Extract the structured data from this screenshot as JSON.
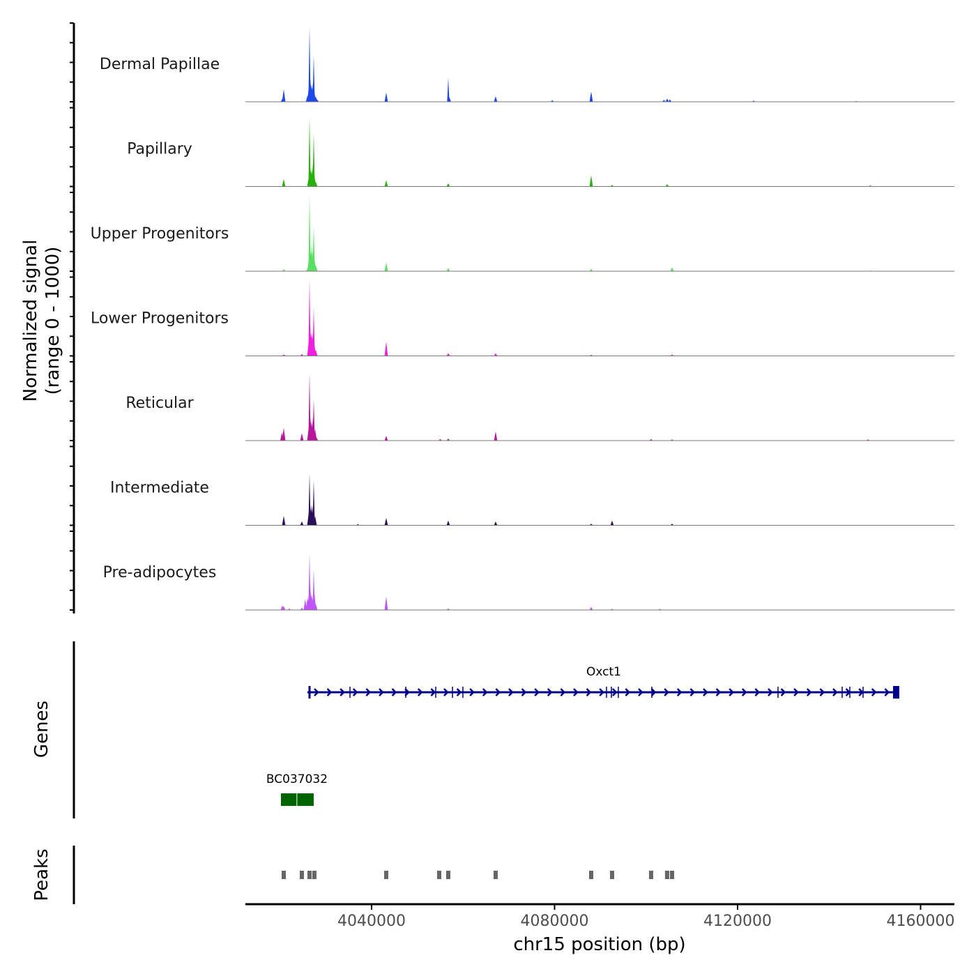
{
  "chart_data": {
    "type": "area",
    "title": "",
    "ylabel": "Normalized signal",
    "ylabel_range": "(range 0 - 1000)",
    "xlabel": "chr15 position (bp)",
    "xlim": [
      4012400,
      4167500
    ],
    "ylim": [
      0,
      1000
    ],
    "x_ticks": [
      4040000,
      4080000,
      4120000,
      4160000
    ],
    "x_tick_labels": [
      "4040000",
      "4080000",
      "4120000",
      "4160000"
    ],
    "grid": false,
    "tracks": [
      {
        "name": "Dermal Papillae",
        "color": "#1c48e6",
        "peaks": [
          [
            4020500,
            40
          ],
          [
            4020800,
            160
          ],
          [
            4026000,
            80
          ],
          [
            4026290,
            190
          ],
          [
            4026440,
            950
          ],
          [
            4026590,
            300
          ],
          [
            4026740,
            230
          ],
          [
            4026900,
            200
          ],
          [
            4027050,
            180
          ],
          [
            4027200,
            240
          ],
          [
            4027350,
            590
          ],
          [
            4027500,
            120
          ],
          [
            4027800,
            70
          ],
          [
            4028100,
            30
          ],
          [
            4043200,
            115
          ],
          [
            4056760,
            310
          ],
          [
            4057000,
            60
          ],
          [
            4067120,
            70
          ],
          [
            4079500,
            20
          ],
          [
            4088000,
            130
          ],
          [
            4103900,
            25
          ],
          [
            4104600,
            40
          ],
          [
            4105200,
            30
          ],
          [
            4123500,
            15
          ],
          [
            4146000,
            10
          ]
        ]
      },
      {
        "name": "Papillary",
        "color": "#29b00a",
        "peaks": [
          [
            4020800,
            95
          ],
          [
            4026290,
            120
          ],
          [
            4026440,
            880
          ],
          [
            4026590,
            250
          ],
          [
            4026740,
            200
          ],
          [
            4026900,
            220
          ],
          [
            4027050,
            160
          ],
          [
            4027200,
            300
          ],
          [
            4027350,
            680
          ],
          [
            4027500,
            140
          ],
          [
            4027800,
            60
          ],
          [
            4043200,
            80
          ],
          [
            4056760,
            40
          ],
          [
            4088000,
            140
          ],
          [
            4092570,
            20
          ],
          [
            4104600,
            30
          ],
          [
            4149000,
            15
          ]
        ]
      },
      {
        "name": "Upper Progenitors",
        "color": "#59e062",
        "peaks": [
          [
            4020800,
            25
          ],
          [
            4026000,
            30
          ],
          [
            4026290,
            150
          ],
          [
            4026440,
            960
          ],
          [
            4026590,
            300
          ],
          [
            4026740,
            250
          ],
          [
            4026900,
            370
          ],
          [
            4027050,
            220
          ],
          [
            4027200,
            280
          ],
          [
            4027350,
            580
          ],
          [
            4027500,
            160
          ],
          [
            4027800,
            80
          ],
          [
            4043200,
            110
          ],
          [
            4056760,
            40
          ],
          [
            4088000,
            30
          ],
          [
            4105680,
            50
          ],
          [
            4149000,
            10
          ]
        ]
      },
      {
        "name": "Lower Progenitors",
        "color": "#f01fe0",
        "peaks": [
          [
            4020800,
            20
          ],
          [
            4024760,
            25
          ],
          [
            4026290,
            200
          ],
          [
            4026440,
            965
          ],
          [
            4026590,
            400
          ],
          [
            4026740,
            290
          ],
          [
            4026900,
            300
          ],
          [
            4027050,
            250
          ],
          [
            4027200,
            310
          ],
          [
            4027350,
            620
          ],
          [
            4027500,
            140
          ],
          [
            4027800,
            80
          ],
          [
            4043200,
            180
          ],
          [
            4056760,
            35
          ],
          [
            4067120,
            35
          ],
          [
            4088000,
            15
          ],
          [
            4105680,
            20
          ]
        ]
      },
      {
        "name": "Reticular",
        "color": "#b8169f",
        "peaks": [
          [
            4020400,
            105
          ],
          [
            4020800,
            165
          ],
          [
            4024760,
            95
          ],
          [
            4026290,
            180
          ],
          [
            4026440,
            860
          ],
          [
            4026590,
            320
          ],
          [
            4026740,
            260
          ],
          [
            4026900,
            230
          ],
          [
            4027050,
            200
          ],
          [
            4027200,
            300
          ],
          [
            4027350,
            530
          ],
          [
            4027660,
            150
          ],
          [
            4027960,
            40
          ],
          [
            4043200,
            60
          ],
          [
            4055000,
            20
          ],
          [
            4056760,
            25
          ],
          [
            4067120,
            115
          ],
          [
            4101100,
            20
          ],
          [
            4105680,
            15
          ],
          [
            4148500,
            15
          ]
        ]
      },
      {
        "name": "Intermediate",
        "color": "#2b0f5a",
        "peaks": [
          [
            4020800,
            120
          ],
          [
            4024760,
            50
          ],
          [
            4026290,
            170
          ],
          [
            4026440,
            660
          ],
          [
            4026590,
            250
          ],
          [
            4026740,
            200
          ],
          [
            4026900,
            260
          ],
          [
            4027050,
            180
          ],
          [
            4027200,
            240
          ],
          [
            4027350,
            575
          ],
          [
            4027660,
            120
          ],
          [
            4037000,
            15
          ],
          [
            4043200,
            95
          ],
          [
            4056760,
            60
          ],
          [
            4067120,
            50
          ],
          [
            4088000,
            20
          ],
          [
            4092570,
            60
          ],
          [
            4105680,
            20
          ]
        ]
      },
      {
        "name": "Pre-adipocytes",
        "color": "#bd55f8",
        "peaks": [
          [
            4020500,
            60
          ],
          [
            4020800,
            50
          ],
          [
            4022000,
            20
          ],
          [
            4024760,
            30
          ],
          [
            4025500,
            140
          ],
          [
            4026000,
            160
          ],
          [
            4026290,
            200
          ],
          [
            4026440,
            720
          ],
          [
            4026590,
            300
          ],
          [
            4026740,
            180
          ],
          [
            4026900,
            210
          ],
          [
            4027050,
            160
          ],
          [
            4027350,
            520
          ],
          [
            4027500,
            220
          ],
          [
            4027800,
            80
          ],
          [
            4043200,
            170
          ],
          [
            4056760,
            20
          ],
          [
            4088000,
            40
          ],
          [
            4092570,
            15
          ],
          [
            4103000,
            15
          ]
        ]
      }
    ],
    "genes_label": "Genes",
    "genes": [
      {
        "name": "Oxct1",
        "strand": "+",
        "color": "#00008b",
        "start": 4025980,
        "end": 4155350,
        "exons": [
          4026440,
          4035280,
          4047470,
          4054020,
          4057680,
          4059960,
          4091350,
          4092420,
          4093940,
          4101260,
          4128840,
          4142860,
          4144530,
          4147430
        ],
        "last_exon": [
          4153980,
          4155350
        ]
      },
      {
        "name": "BC037032",
        "strand": "-",
        "color": "#006400",
        "start": 4020190,
        "end": 4027350,
        "exons": [
          [
            4020190,
            4023600
          ],
          [
            4023750,
            4027350
          ]
        ]
      }
    ],
    "peaks_label": "Peaks",
    "peak_color": "#666666",
    "peak_regions": [
      4020800,
      4024760,
      4026440,
      4027500,
      4043200,
      4054780,
      4056760,
      4067120,
      4088000,
      4092570,
      4101100,
      4104600,
      4105680
    ]
  }
}
